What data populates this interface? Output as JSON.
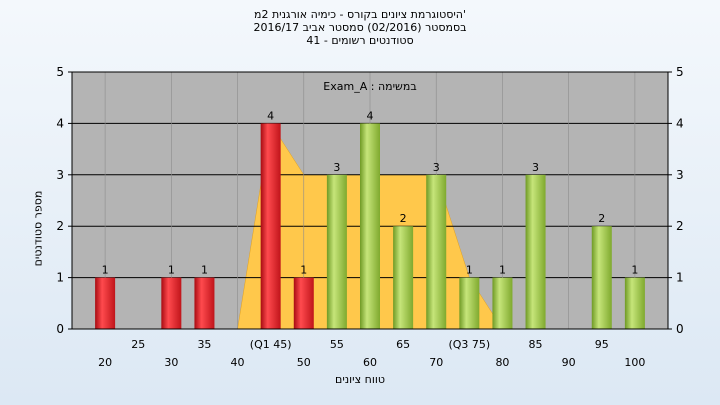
{
  "chart_data": {
    "type": "bar",
    "title_lines": [
      "היסטוגרמת ציונים בקורס - כימיה אורגנית 2מ'",
      "בסמסטר  (02/2016)  סמסטר אביב 2016/17",
      "41 - סטודנטים רשומים"
    ],
    "annotation": "Exam_A : במשימה",
    "xlabel": "טווח ציונים",
    "ylabel": "מספר סטודנטים",
    "ylim": [
      0,
      5
    ],
    "y_ticks": [
      "0",
      "1",
      "2",
      "3",
      "4",
      "5"
    ],
    "x_ticks_upper": [
      "25",
      "35",
      "(Q1 45)",
      "55",
      "65",
      "(Q3 75)",
      "85",
      "95"
    ],
    "x_ticks_lower": [
      "20",
      "30",
      "40",
      "50",
      "60",
      "70",
      "80",
      "90",
      "100"
    ],
    "bars": [
      {
        "x": 20,
        "value": 1,
        "color": "red"
      },
      {
        "x": 30,
        "value": 1,
        "color": "red"
      },
      {
        "x": 35,
        "value": 1,
        "color": "red"
      },
      {
        "x": 45,
        "value": 4,
        "color": "red"
      },
      {
        "x": 50,
        "value": 1,
        "color": "red"
      },
      {
        "x": 55,
        "value": 3,
        "color": "green"
      },
      {
        "x": 60,
        "value": 4,
        "color": "green"
      },
      {
        "x": 65,
        "value": 2,
        "color": "green"
      },
      {
        "x": 70,
        "value": 3,
        "color": "green"
      },
      {
        "x": 75,
        "value": 1,
        "color": "green"
      },
      {
        "x": 80,
        "value": 1,
        "color": "green"
      },
      {
        "x": 85,
        "value": 3,
        "color": "green"
      },
      {
        "x": 95,
        "value": 2,
        "color": "green"
      },
      {
        "x": 100,
        "value": 1,
        "color": "green"
      }
    ],
    "area": [
      {
        "x": 40,
        "y": 0
      },
      {
        "x": 45,
        "y": 4
      },
      {
        "x": 50,
        "y": 3
      },
      {
        "x": 70,
        "y": 3
      },
      {
        "x": 75,
        "y": 1
      },
      {
        "x": 80,
        "y": 0
      }
    ],
    "colors": {
      "plot_bg": "#b4b4b4",
      "area_fill": "#ffc84b",
      "red_bar": "#e8262b",
      "green_bar": "#9cc743",
      "grid": "#000000"
    }
  }
}
